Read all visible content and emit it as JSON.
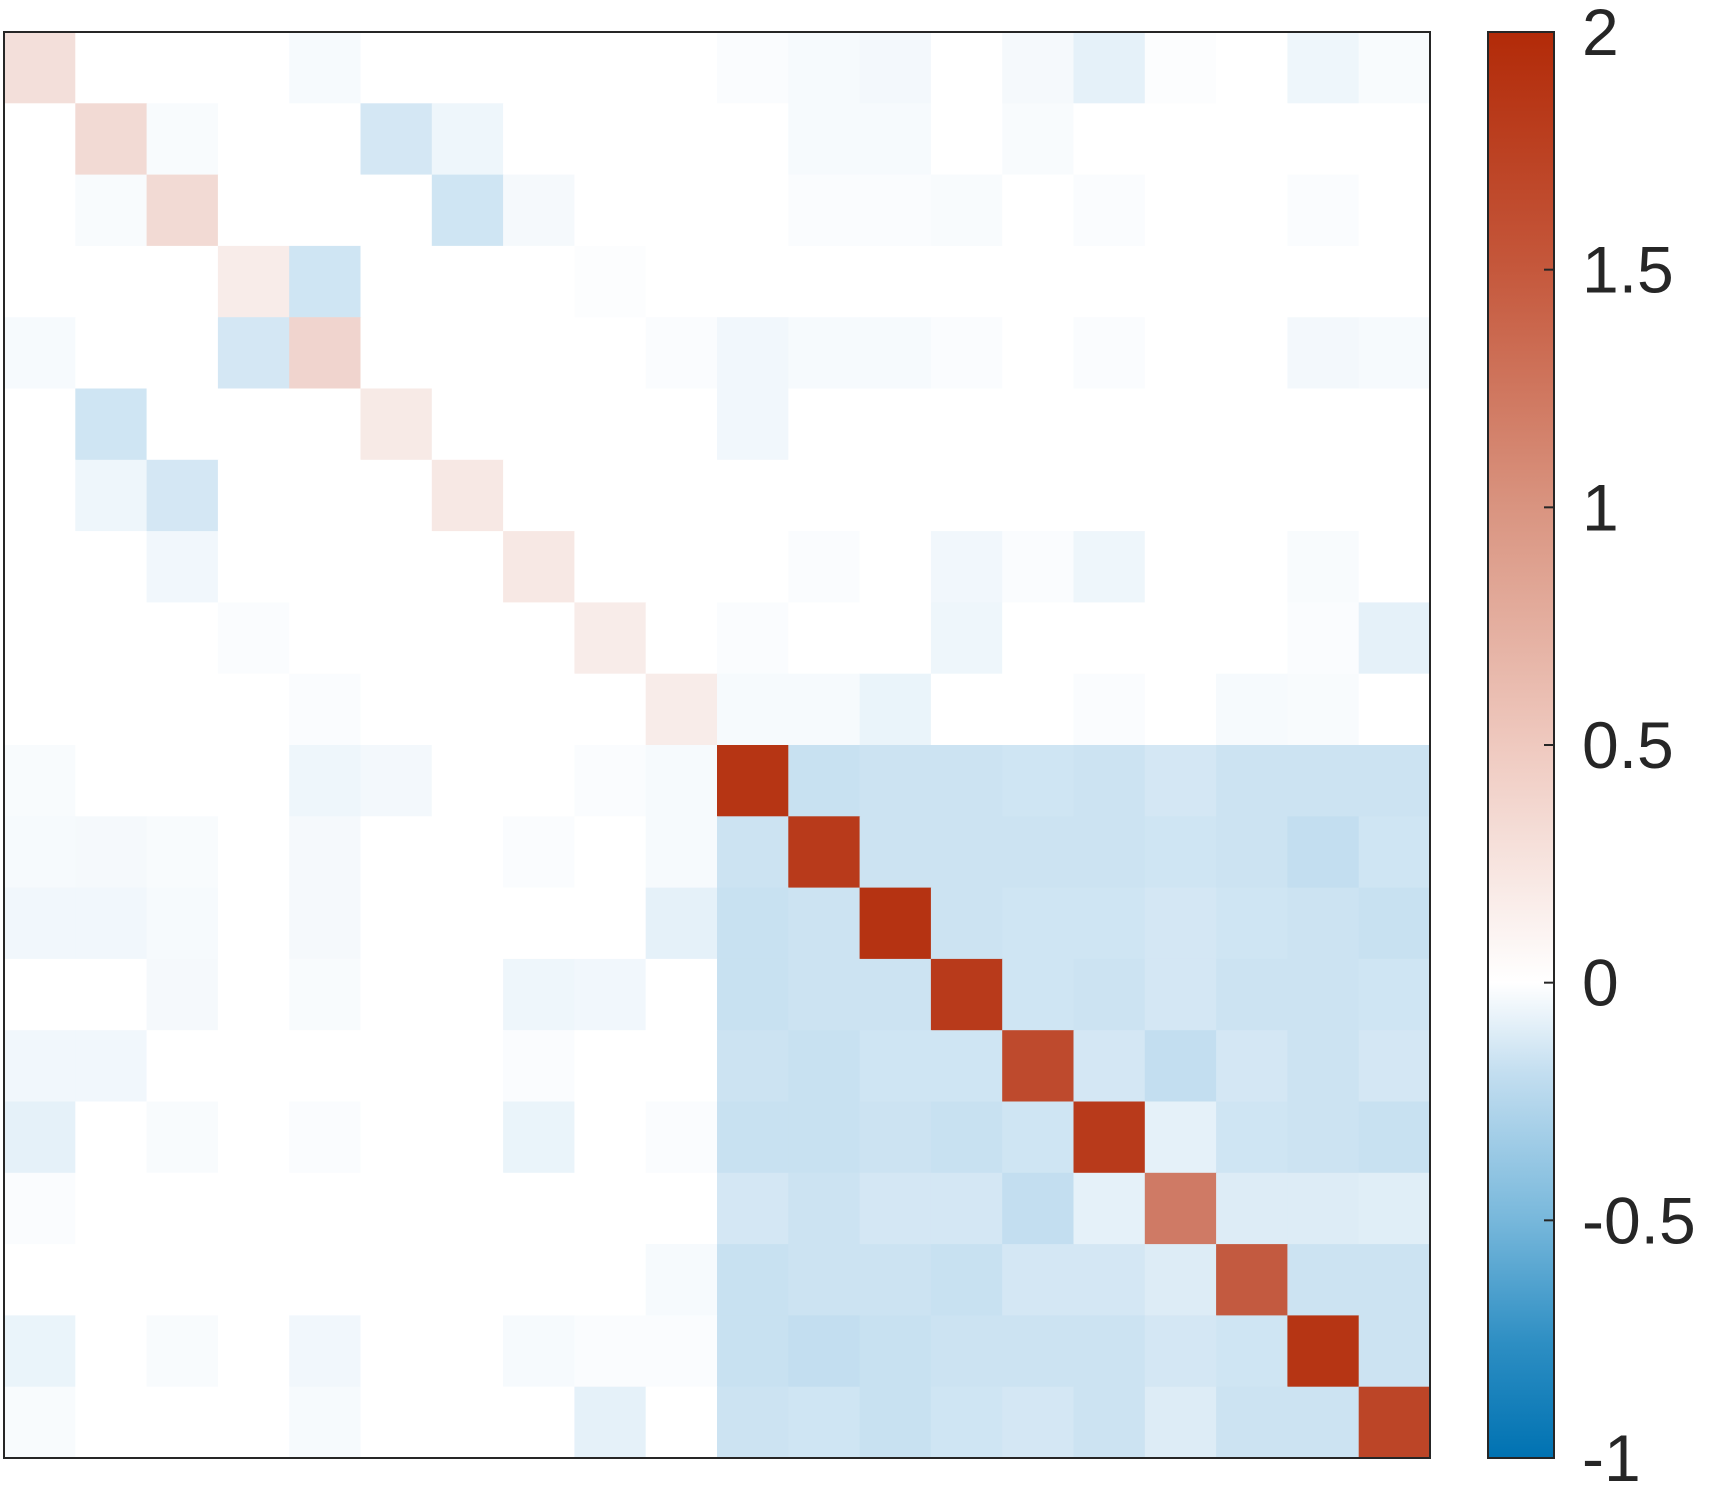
{
  "chart_data": {
    "type": "heatmap",
    "title": "",
    "xlabel": "",
    "ylabel": "",
    "rows": 20,
    "cols": 20,
    "colorbar": {
      "range": [
        -1,
        2
      ],
      "ticks": [
        2,
        1.5,
        1,
        0.5,
        0,
        -0.5,
        -1
      ],
      "tick_labels": [
        "2",
        "1.5",
        "1",
        "0.5",
        "0",
        "-0.5",
        "-1"
      ],
      "placement": "right",
      "color_min": "#0072b2",
      "color_zero": "#ffffff",
      "color_max": "#b22a08"
    },
    "values": [
      [
        0.3,
        0,
        0,
        0,
        -0.05,
        0,
        0,
        0,
        0,
        0,
        -0.03,
        -0.05,
        -0.07,
        0,
        -0.06,
        -0.15,
        -0.02,
        0,
        -0.1,
        -0.04
      ],
      [
        0,
        0.35,
        -0.04,
        0,
        0,
        -0.25,
        -0.1,
        0,
        0,
        0,
        0,
        -0.05,
        -0.05,
        0,
        -0.04,
        0,
        0,
        0,
        0,
        0
      ],
      [
        0,
        -0.04,
        0.35,
        0,
        0,
        0,
        -0.28,
        -0.06,
        0,
        0,
        0,
        -0.03,
        -0.03,
        -0.04,
        0,
        -0.03,
        0,
        0,
        -0.03,
        0
      ],
      [
        0,
        0,
        0,
        0.18,
        -0.28,
        0,
        0,
        0,
        -0.02,
        0,
        0,
        0,
        0,
        0,
        0,
        0,
        0,
        0,
        0,
        0
      ],
      [
        -0.05,
        0,
        0,
        -0.25,
        0.4,
        0,
        0,
        0,
        0,
        -0.03,
        -0.08,
        -0.05,
        -0.05,
        -0.03,
        0,
        -0.03,
        0,
        0,
        -0.07,
        -0.05
      ],
      [
        0,
        -0.28,
        0,
        0,
        0,
        0.2,
        0,
        0,
        0,
        0,
        -0.08,
        0,
        0,
        0,
        0,
        0,
        0,
        0,
        0,
        0
      ],
      [
        0,
        -0.1,
        -0.25,
        0,
        0,
        0,
        0.22,
        0,
        0,
        0,
        0,
        0,
        0,
        0,
        0,
        0,
        0,
        0,
        0,
        0
      ],
      [
        0,
        0,
        -0.08,
        0,
        0,
        0,
        0,
        0.22,
        0,
        0,
        0,
        -0.03,
        0,
        -0.08,
        -0.03,
        -0.1,
        0,
        0,
        -0.04,
        0
      ],
      [
        0,
        0,
        0,
        -0.03,
        0,
        0,
        0,
        0,
        0.18,
        0,
        -0.03,
        0,
        0,
        -0.1,
        0,
        0,
        0,
        0,
        -0.03,
        -0.15
      ],
      [
        0,
        0,
        0,
        0,
        -0.03,
        0,
        0,
        0,
        0,
        0.18,
        -0.05,
        -0.05,
        -0.12,
        0,
        0,
        -0.03,
        0,
        -0.05,
        -0.04,
        0
      ],
      [
        -0.04,
        0,
        0,
        0,
        -0.1,
        -0.07,
        0,
        0,
        -0.03,
        -0.05,
        1.9,
        -0.32,
        -0.3,
        -0.3,
        -0.28,
        -0.3,
        -0.25,
        -0.3,
        -0.3,
        -0.3
      ],
      [
        -0.05,
        -0.06,
        -0.04,
        0,
        -0.06,
        0,
        0,
        -0.03,
        0,
        -0.05,
        -0.3,
        1.85,
        -0.3,
        -0.3,
        -0.3,
        -0.3,
        -0.28,
        -0.3,
        -0.35,
        -0.28
      ],
      [
        -0.08,
        -0.08,
        -0.05,
        0,
        -0.06,
        0,
        0,
        0,
        0,
        -0.15,
        -0.32,
        -0.3,
        1.92,
        -0.3,
        -0.28,
        -0.28,
        -0.25,
        -0.28,
        -0.3,
        -0.32
      ],
      [
        0,
        0,
        -0.06,
        0,
        -0.04,
        0,
        0,
        -0.1,
        -0.08,
        0,
        -0.32,
        -0.3,
        -0.3,
        1.85,
        -0.28,
        -0.3,
        -0.25,
        -0.3,
        -0.3,
        -0.28
      ],
      [
        -0.08,
        -0.08,
        0,
        0,
        0,
        0,
        0,
        -0.03,
        0,
        0,
        -0.3,
        -0.32,
        -0.28,
        -0.28,
        1.7,
        -0.25,
        -0.35,
        -0.25,
        -0.3,
        -0.25
      ],
      [
        -0.15,
        0,
        -0.04,
        0,
        -0.03,
        0,
        0,
        -0.12,
        0,
        -0.03,
        -0.32,
        -0.32,
        -0.3,
        -0.32,
        -0.28,
        1.85,
        -0.15,
        -0.28,
        -0.3,
        -0.32
      ],
      [
        -0.03,
        0,
        0,
        0,
        0,
        0,
        0,
        0,
        0,
        0,
        -0.25,
        -0.3,
        -0.25,
        -0.25,
        -0.35,
        -0.15,
        1.25,
        -0.2,
        -0.2,
        -0.18
      ],
      [
        0,
        0,
        0,
        0,
        0,
        0,
        0,
        0,
        0,
        -0.05,
        -0.32,
        -0.3,
        -0.3,
        -0.32,
        -0.25,
        -0.25,
        -0.2,
        1.55,
        -0.3,
        -0.3
      ],
      [
        -0.12,
        0,
        -0.04,
        0,
        -0.08,
        0,
        0,
        -0.05,
        -0.03,
        -0.03,
        -0.32,
        -0.35,
        -0.32,
        -0.3,
        -0.3,
        -0.3,
        -0.25,
        -0.28,
        1.9,
        -0.3
      ],
      [
        -0.04,
        0,
        0,
        0,
        -0.05,
        0,
        0,
        0,
        -0.15,
        0,
        -0.3,
        -0.28,
        -0.32,
        -0.28,
        -0.25,
        -0.3,
        -0.2,
        -0.3,
        -0.3,
        1.75
      ]
    ]
  }
}
